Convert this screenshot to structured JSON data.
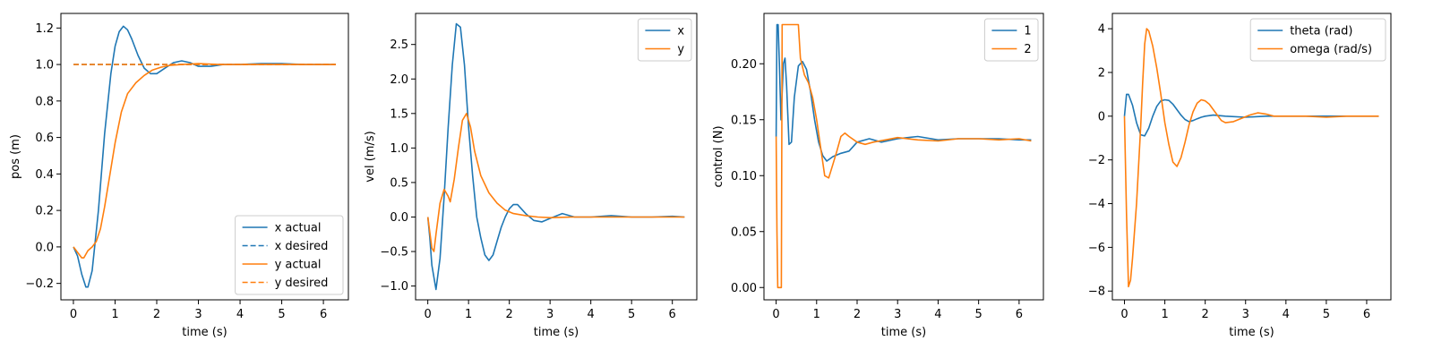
{
  "chart_data": [
    {
      "type": "line",
      "xlabel": "time (s)",
      "ylabel": "pos (m)",
      "xlim": [
        -0.3,
        6.6
      ],
      "ylim": [
        -0.29,
        1.28
      ],
      "xticks": [
        0,
        1,
        2,
        3,
        4,
        5,
        6
      ],
      "yticks": [
        -0.2,
        0.0,
        0.2,
        0.4,
        0.6,
        0.8,
        1.0,
        1.2
      ],
      "ytick_labels": [
        "−0.2",
        "0.0",
        "0.2",
        "0.4",
        "0.6",
        "0.8",
        "1.0",
        "1.2"
      ],
      "legend_position": "lower-right",
      "series": [
        {
          "name": "x actual",
          "color": "#1f77b4",
          "dash": "solid",
          "x": [
            0,
            0.1,
            0.2,
            0.3,
            0.35,
            0.45,
            0.6,
            0.75,
            0.9,
            1.0,
            1.1,
            1.2,
            1.3,
            1.4,
            1.55,
            1.7,
            1.85,
            2.0,
            2.2,
            2.4,
            2.6,
            2.8,
            3.0,
            3.3,
            3.6,
            4.0,
            4.5,
            5.0,
            5.5,
            6.0,
            6.3
          ],
          "y": [
            0,
            -0.05,
            -0.15,
            -0.22,
            -0.22,
            -0.13,
            0.2,
            0.62,
            0.95,
            1.1,
            1.18,
            1.21,
            1.19,
            1.14,
            1.05,
            0.98,
            0.95,
            0.95,
            0.98,
            1.01,
            1.02,
            1.01,
            0.99,
            0.99,
            1.0,
            1.0,
            1.005,
            1.005,
            1.0,
            1.0,
            1.0
          ]
        },
        {
          "name": "x desired",
          "color": "#1f77b4",
          "dash": "dashed",
          "x": [
            0,
            6.3
          ],
          "y": [
            1.0,
            1.0
          ]
        },
        {
          "name": "y actual",
          "color": "#ff7f0e",
          "dash": "solid",
          "x": [
            0,
            0.1,
            0.2,
            0.25,
            0.35,
            0.45,
            0.55,
            0.65,
            0.75,
            0.85,
            1.0,
            1.15,
            1.3,
            1.5,
            1.7,
            1.9,
            2.1,
            2.3,
            2.6,
            3.0,
            3.5,
            4.0,
            5.0,
            6.0,
            6.3
          ],
          "y": [
            0,
            -0.03,
            -0.06,
            -0.06,
            -0.02,
            0.0,
            0.03,
            0.1,
            0.22,
            0.36,
            0.57,
            0.74,
            0.84,
            0.9,
            0.94,
            0.97,
            0.985,
            0.995,
            1.0,
            1.005,
            1.0,
            1.0,
            1.0,
            1.0,
            1.0
          ]
        },
        {
          "name": "y desired",
          "color": "#ff7f0e",
          "dash": "dashed",
          "x": [
            0,
            6.3
          ],
          "y": [
            1.0,
            1.0
          ]
        }
      ]
    },
    {
      "type": "line",
      "xlabel": "time (s)",
      "ylabel": "vel (m/s)",
      "xlim": [
        -0.3,
        6.6
      ],
      "ylim": [
        -1.2,
        2.95
      ],
      "xticks": [
        0,
        1,
        2,
        3,
        4,
        5,
        6
      ],
      "yticks": [
        -1.0,
        -0.5,
        0.0,
        0.5,
        1.0,
        1.5,
        2.0,
        2.5
      ],
      "ytick_labels": [
        "−1.0",
        "−0.5",
        "0.0",
        "0.5",
        "1.0",
        "1.5",
        "2.0",
        "2.5"
      ],
      "legend_position": "upper-right",
      "series": [
        {
          "name": "x",
          "color": "#1f77b4",
          "dash": "solid",
          "x": [
            0,
            0.05,
            0.1,
            0.2,
            0.3,
            0.4,
            0.5,
            0.6,
            0.7,
            0.8,
            0.9,
            1.0,
            1.1,
            1.2,
            1.3,
            1.4,
            1.5,
            1.6,
            1.7,
            1.8,
            1.9,
            2.0,
            2.1,
            2.2,
            2.4,
            2.6,
            2.8,
            3.0,
            3.3,
            3.6,
            4.0,
            4.5,
            5.0,
            5.5,
            6.0,
            6.3
          ],
          "y": [
            0,
            -0.3,
            -0.7,
            -1.05,
            -0.6,
            0.3,
            1.3,
            2.2,
            2.8,
            2.75,
            2.2,
            1.3,
            0.6,
            0.0,
            -0.3,
            -0.55,
            -0.63,
            -0.55,
            -0.35,
            -0.15,
            0.0,
            0.12,
            0.18,
            0.18,
            0.05,
            -0.05,
            -0.07,
            -0.02,
            0.05,
            0.0,
            0.0,
            0.02,
            0.0,
            0.0,
            0.01,
            0.0
          ]
        },
        {
          "name": "y",
          "color": "#ff7f0e",
          "dash": "solid",
          "x": [
            0,
            0.1,
            0.15,
            0.2,
            0.3,
            0.4,
            0.5,
            0.55,
            0.65,
            0.75,
            0.85,
            0.95,
            1.05,
            1.15,
            1.3,
            1.5,
            1.7,
            1.9,
            2.1,
            2.4,
            2.7,
            3.0,
            3.5,
            4.0,
            4.5,
            5.0,
            5.5,
            6.0,
            6.3
          ],
          "y": [
            0,
            -0.45,
            -0.5,
            -0.25,
            0.2,
            0.4,
            0.3,
            0.22,
            0.55,
            1.0,
            1.4,
            1.5,
            1.3,
            0.95,
            0.6,
            0.35,
            0.2,
            0.1,
            0.05,
            0.02,
            0.0,
            -0.01,
            0.0,
            0.0,
            0.0,
            0.0,
            0.0,
            0.0,
            0.0
          ]
        }
      ]
    },
    {
      "type": "line",
      "xlabel": "time (s)",
      "ylabel": "control (N)",
      "xlim": [
        -0.3,
        6.6
      ],
      "ylim": [
        -0.011,
        0.245
      ],
      "xticks": [
        0,
        1,
        2,
        3,
        4,
        5,
        6
      ],
      "yticks": [
        0.0,
        0.05,
        0.1,
        0.15,
        0.2
      ],
      "ytick_labels": [
        "0.00",
        "0.05",
        "0.10",
        "0.15",
        "0.20"
      ],
      "legend_position": "upper-right",
      "series": [
        {
          "name": "1",
          "color": "#1f77b4",
          "dash": "solid",
          "x": [
            0,
            0.02,
            0.05,
            0.08,
            0.12,
            0.18,
            0.22,
            0.26,
            0.32,
            0.38,
            0.45,
            0.55,
            0.65,
            0.75,
            0.85,
            0.95,
            1.05,
            1.15,
            1.25,
            1.4,
            1.6,
            1.8,
            2.0,
            2.3,
            2.6,
            3.0,
            3.5,
            4.0,
            4.5,
            5.0,
            5.5,
            6.0,
            6.3
          ],
          "y": [
            0.135,
            0.235,
            0.235,
            0.2,
            0.15,
            0.2,
            0.205,
            0.18,
            0.128,
            0.13,
            0.17,
            0.198,
            0.202,
            0.195,
            0.175,
            0.15,
            0.13,
            0.118,
            0.113,
            0.117,
            0.12,
            0.122,
            0.13,
            0.133,
            0.13,
            0.133,
            0.135,
            0.132,
            0.133,
            0.133,
            0.133,
            0.132,
            0.132
          ]
        },
        {
          "name": "2",
          "color": "#ff7f0e",
          "dash": "solid",
          "x": [
            0,
            0.02,
            0.04,
            0.1,
            0.13,
            0.15,
            0.2,
            0.3,
            0.4,
            0.5,
            0.55,
            0.6,
            0.7,
            0.8,
            0.9,
            1.0,
            1.1,
            1.2,
            1.3,
            1.4,
            1.5,
            1.6,
            1.7,
            1.8,
            2.0,
            2.2,
            2.4,
            2.7,
            3.0,
            3.5,
            4.0,
            4.5,
            5.0,
            5.5,
            6.0,
            6.3
          ],
          "y": [
            0.135,
            0.05,
            0.0,
            0.0,
            0.0,
            0.235,
            0.235,
            0.235,
            0.235,
            0.235,
            0.235,
            0.205,
            0.19,
            0.183,
            0.17,
            0.15,
            0.125,
            0.1,
            0.098,
            0.11,
            0.122,
            0.135,
            0.138,
            0.135,
            0.13,
            0.128,
            0.13,
            0.132,
            0.134,
            0.132,
            0.131,
            0.133,
            0.133,
            0.132,
            0.133,
            0.131
          ]
        }
      ]
    },
    {
      "type": "line",
      "xlabel": "time (s)",
      "ylabel": "",
      "xlim": [
        -0.3,
        6.6
      ],
      "ylim": [
        -8.4,
        4.7
      ],
      "xticks": [
        0,
        1,
        2,
        3,
        4,
        5,
        6
      ],
      "yticks": [
        -8,
        -6,
        -4,
        -2,
        0,
        2,
        4
      ],
      "ytick_labels": [
        "−8",
        "−6",
        "−4",
        "−2",
        "0",
        "2",
        "4"
      ],
      "legend_position": "upper-right",
      "series": [
        {
          "name": "theta (rad)",
          "color": "#1f77b4",
          "dash": "solid",
          "x": [
            0,
            0.05,
            0.1,
            0.2,
            0.3,
            0.4,
            0.5,
            0.6,
            0.7,
            0.8,
            0.9,
            1.0,
            1.1,
            1.2,
            1.3,
            1.4,
            1.5,
            1.6,
            1.7,
            1.8,
            1.9,
            2.0,
            2.2,
            2.5,
            3.0,
            3.5,
            4.0,
            4.5,
            5.0,
            5.5,
            6.0,
            6.3
          ],
          "y": [
            0.0,
            1.0,
            1.0,
            0.5,
            -0.3,
            -0.85,
            -0.9,
            -0.55,
            0.0,
            0.45,
            0.7,
            0.75,
            0.72,
            0.55,
            0.3,
            0.05,
            -0.15,
            -0.25,
            -0.2,
            -0.12,
            -0.05,
            0.0,
            0.05,
            0.0,
            -0.05,
            0.0,
            0.0,
            0.0,
            0.0,
            0.0,
            0.0,
            0.0
          ]
        },
        {
          "name": "omega (rad/s)",
          "color": "#ff7f0e",
          "dash": "solid",
          "x": [
            0,
            0.05,
            0.1,
            0.15,
            0.2,
            0.3,
            0.4,
            0.45,
            0.5,
            0.55,
            0.6,
            0.7,
            0.8,
            0.9,
            1.0,
            1.1,
            1.2,
            1.3,
            1.4,
            1.5,
            1.6,
            1.7,
            1.8,
            1.9,
            2.0,
            2.1,
            2.2,
            2.3,
            2.4,
            2.5,
            2.7,
            2.9,
            3.1,
            3.3,
            3.5,
            3.7,
            4.0,
            4.5,
            5.0,
            5.5,
            6.0,
            6.3
          ],
          "y": [
            0.0,
            -4.5,
            -7.8,
            -7.5,
            -6.5,
            -4.0,
            -0.5,
            1.5,
            3.3,
            4.0,
            3.9,
            3.2,
            2.2,
            1.0,
            -0.3,
            -1.3,
            -2.1,
            -2.3,
            -1.9,
            -1.2,
            -0.4,
            0.2,
            0.6,
            0.75,
            0.7,
            0.55,
            0.3,
            0.05,
            -0.2,
            -0.3,
            -0.25,
            -0.1,
            0.05,
            0.15,
            0.1,
            0.0,
            0.0,
            0.0,
            -0.05,
            0.0,
            0.0,
            0.0
          ]
        }
      ]
    }
  ]
}
